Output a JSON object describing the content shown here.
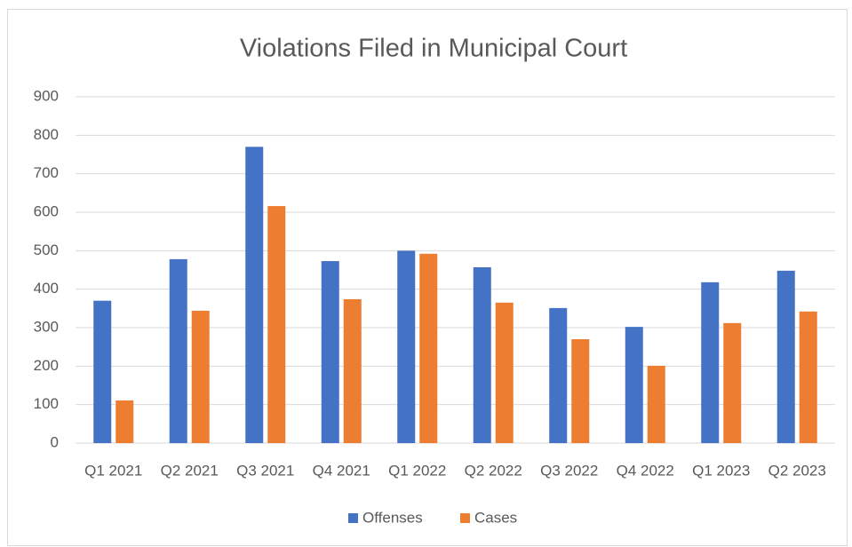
{
  "chart_data": {
    "type": "bar",
    "title": "Violations Filed in Municipal Court",
    "categories": [
      "Q1 2021",
      "Q2 2021",
      "Q3 2021",
      "Q4 2021",
      "Q1 2022",
      "Q2 2022",
      "Q3 2022",
      "Q4 2022",
      "Q1 2023",
      "Q2 2023"
    ],
    "series": [
      {
        "name": "Offenses",
        "color": "#4472c4",
        "values": [
          370,
          478,
          770,
          473,
          500,
          457,
          351,
          302,
          418,
          448
        ]
      },
      {
        "name": "Cases",
        "color": "#ed7d31",
        "values": [
          111,
          344,
          616,
          374,
          492,
          365,
          270,
          201,
          312,
          342
        ]
      }
    ],
    "ylim": [
      0,
      900
    ],
    "yticks": [
      0,
      100,
      200,
      300,
      400,
      500,
      600,
      700,
      800,
      900
    ],
    "grid": true,
    "legend": "bottom"
  }
}
